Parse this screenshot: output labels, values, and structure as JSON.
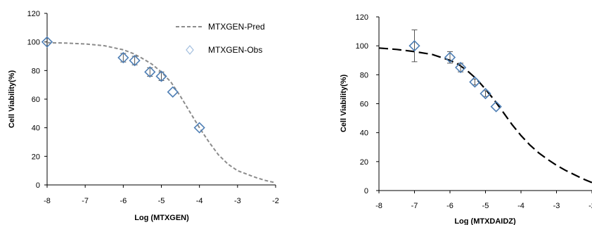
{
  "chart_data": [
    {
      "type": "scatter",
      "xlabel": "Log (MTXGEN)",
      "ylabel": "Cell Viability(%)",
      "xlim": [
        -8,
        -2
      ],
      "ylim": [
        0,
        120
      ],
      "xticks": [
        "-8",
        "-7",
        "-6",
        "-5",
        "-4",
        "-3",
        "-2"
      ],
      "yticks": [
        "0",
        "20",
        "40",
        "60",
        "80",
        "100",
        "120"
      ],
      "grid": false,
      "legend_position": "top-right",
      "legend": [
        {
          "label": "MTXGEN-Pred",
          "kind": "line"
        },
        {
          "label": "MTXGEN-Obs",
          "kind": "marker"
        }
      ],
      "series": [
        {
          "name": "MTXGEN-Pred",
          "kind": "line",
          "style": "dashed",
          "color": "#8c8c8c",
          "x": [
            -8,
            -7.5,
            -7,
            -6.5,
            -6,
            -5.75,
            -5.5,
            -5.25,
            -5,
            -4.75,
            -4.5,
            -4.25,
            -4,
            -3.75,
            -3.5,
            -3.25,
            -3,
            -2.75,
            -2.5,
            -2.25,
            -2
          ],
          "y": [
            99.5,
            99.2,
            98.6,
            97.4,
            94.5,
            92,
            88.5,
            84.5,
            79,
            72,
            62,
            51,
            40,
            30,
            21,
            14.5,
            10,
            7.5,
            5,
            3,
            1.5
          ]
        },
        {
          "name": "MTXGEN-Obs",
          "kind": "marker",
          "marker": "diamond",
          "color": "#4f7fb5",
          "x": [
            -8,
            -6,
            -5.7,
            -5.3,
            -5,
            -4.7,
            -4
          ],
          "y": [
            100,
            89,
            87,
            79,
            76,
            65,
            40
          ],
          "err": [
            0,
            3,
            3,
            3,
            3,
            0,
            0
          ]
        }
      ]
    },
    {
      "type": "scatter",
      "xlabel": "Log (MTXDAIDZ)",
      "ylabel": "Cell Viability(%)",
      "xlim": [
        -8,
        -2
      ],
      "ylim": [
        0,
        120
      ],
      "xticks": [
        "-8",
        "-7",
        "-6",
        "-5",
        "-4",
        "-3",
        "-2"
      ],
      "yticks": [
        "0",
        "20",
        "40",
        "60",
        "80",
        "100",
        "120"
      ],
      "grid": false,
      "series": [
        {
          "kind": "line",
          "style": "dashed",
          "color": "#000000",
          "x": [
            -8,
            -7.5,
            -7,
            -6.5,
            -6,
            -5.75,
            -5.5,
            -5.25,
            -5,
            -4.75,
            -4.5,
            -4.25,
            -4,
            -3.75,
            -3.5,
            -3.25,
            -3,
            -2.75,
            -2.5,
            -2.25,
            -2
          ],
          "y": [
            98.5,
            97.5,
            96,
            94,
            90,
            87,
            82.5,
            77,
            70,
            62.5,
            54,
            45.5,
            38,
            31.5,
            26,
            21.5,
            17.5,
            14,
            11,
            8,
            5.5
          ]
        },
        {
          "kind": "marker",
          "marker": "diamond",
          "color": "#4f7fb5",
          "x": [
            -7,
            -6,
            -5.7,
            -5.3,
            -5,
            -4.7
          ],
          "y": [
            100,
            92,
            85,
            75,
            67,
            58
          ],
          "err": [
            11,
            4,
            3,
            2,
            2,
            0
          ]
        }
      ]
    }
  ]
}
